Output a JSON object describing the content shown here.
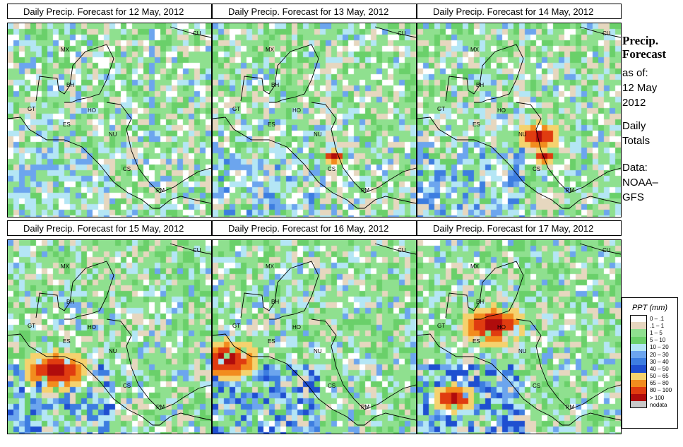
{
  "panels": [
    {
      "title": "Daily Precip. Forecast for  12 May, 2012",
      "seed": 11,
      "hot": []
    },
    {
      "title": "Daily Precip. Forecast for  13 May, 2012",
      "seed": 23,
      "hot": [
        [
          170,
          188,
          1
        ]
      ]
    },
    {
      "title": "Daily Precip. Forecast for  14 May, 2012",
      "seed": 37,
      "hot": [
        [
          168,
          158,
          2
        ],
        [
          175,
          185,
          1
        ]
      ]
    },
    {
      "title": "Daily Precip. Forecast for  15 May, 2012",
      "seed": 41,
      "hot": [
        [
          60,
          178,
          3
        ]
      ]
    },
    {
      "title": "Daily Precip. Forecast for  16 May, 2012",
      "seed": 59,
      "hot": [
        [
          15,
          168,
          3
        ]
      ]
    },
    {
      "title": "Daily Precip. Forecast for  17 May, 2012",
      "seed": 71,
      "hot": [
        [
          105,
          115,
          3
        ],
        [
          45,
          220,
          2
        ]
      ]
    }
  ],
  "side": {
    "title_line1": "Precip.",
    "title_line2": "Forecast",
    "as_of": "as of:",
    "date_line1": "12 May",
    "date_line2": "2012",
    "daily_line1": "Daily",
    "daily_line2": "Totals",
    "data_line1": "Data:",
    "data_line2": "NOAA–",
    "data_line3": "GFS"
  },
  "legend": {
    "title": "PPT (mm)",
    "items": [
      {
        "label": "0 – .1",
        "color": "#ffffff"
      },
      {
        "label": ".1 – 1",
        "color": "#e6d7bf"
      },
      {
        "label": "1 – 5",
        "color": "#8fe08f"
      },
      {
        "label": "5 – 10",
        "color": "#6ad06a"
      },
      {
        "label": "10 – 20",
        "color": "#b4e6f5"
      },
      {
        "label": "20 – 30",
        "color": "#6ca5ee"
      },
      {
        "label": "30 – 40",
        "color": "#3d7de0"
      },
      {
        "label": "40 – 50",
        "color": "#1f4fd0"
      },
      {
        "label": "50 – 65",
        "color": "#f5d26e"
      },
      {
        "label": "65 – 80",
        "color": "#f28c1e"
      },
      {
        "label": "80 – 100",
        "color": "#e03c10"
      },
      {
        "label": "> 100",
        "color": "#b00c0c"
      },
      {
        "label": "nodata",
        "color": "#c8c8c8"
      }
    ]
  },
  "country_codes": {
    "cu": "CU",
    "mx": "MX",
    "bh": "BH",
    "gt": "GT",
    "ho": "HO",
    "es": "ES",
    "nu": "NU",
    "cs": "CS",
    "pm": "PM"
  }
}
